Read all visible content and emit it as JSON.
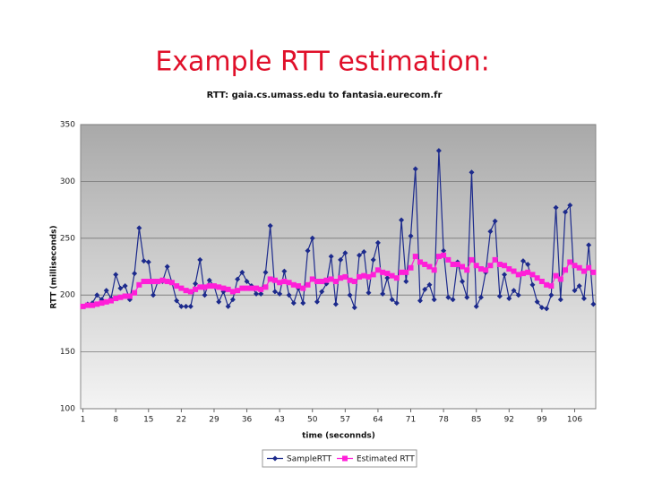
{
  "slide_title": "Example RTT estimation:",
  "chart_data": {
    "type": "line",
    "title": "RTT: gaia.cs.umass.edu to fantasia.eurecom.fr",
    "x_label": "time (seconnds)",
    "y_label": "RTT (milliseconds)",
    "x": [
      1,
      2,
      3,
      4,
      5,
      6,
      7,
      8,
      9,
      10,
      11,
      12,
      13,
      14,
      15,
      16,
      17,
      18,
      19,
      20,
      21,
      22,
      23,
      24,
      25,
      26,
      27,
      28,
      29,
      30,
      31,
      32,
      33,
      34,
      35,
      36,
      37,
      38,
      39,
      40,
      41,
      42,
      43,
      44,
      45,
      46,
      47,
      48,
      49,
      50,
      51,
      52,
      53,
      54,
      55,
      56,
      57,
      58,
      59,
      60,
      61,
      62,
      63,
      64,
      65,
      66,
      67,
      68,
      69,
      70,
      71,
      72,
      73,
      74,
      75,
      76,
      77,
      78,
      79,
      80,
      81,
      82,
      83,
      84,
      85,
      86,
      87,
      88,
      89,
      90,
      91,
      92,
      93,
      94,
      95,
      96,
      97,
      98,
      99,
      100,
      101,
      102,
      103,
      104,
      105,
      106,
      107,
      108,
      109,
      110
    ],
    "xlim": [
      0.5,
      110.5
    ],
    "xticks": [
      1,
      8,
      15,
      22,
      29,
      36,
      43,
      50,
      57,
      64,
      71,
      78,
      85,
      92,
      99,
      106
    ],
    "ylim": [
      100,
      350
    ],
    "yticks": [
      100,
      150,
      200,
      250,
      300,
      350
    ],
    "grid": true,
    "legend": "bottom",
    "series": [
      {
        "name": "SampleRTT",
        "color": "#1c2a8c",
        "marker": "diamond",
        "values": [
          190,
          192,
          193,
          200,
          196,
          204,
          197,
          218,
          206,
          208,
          196,
          219,
          259,
          230,
          229,
          200,
          212,
          212,
          225,
          211,
          195,
          190,
          190,
          190,
          210,
          231,
          200,
          213,
          208,
          194,
          203,
          190,
          196,
          214,
          220,
          212,
          208,
          201,
          201,
          220,
          261,
          203,
          201,
          221,
          200,
          193,
          206,
          193,
          239,
          250,
          194,
          203,
          210,
          234,
          192,
          231,
          237,
          200,
          189,
          235,
          238,
          202,
          231,
          246,
          201,
          215,
          196,
          193,
          266,
          212,
          252,
          311,
          195,
          205,
          209,
          196,
          327,
          239,
          198,
          196,
          229,
          212,
          198,
          308,
          190,
          198,
          220,
          256,
          265,
          199,
          218,
          197,
          204,
          200,
          230,
          227,
          209,
          194,
          189,
          188,
          200,
          277,
          196,
          273,
          279,
          204,
          208,
          197,
          244,
          192
        ]
      },
      {
        "name": "Estimated RTT",
        "color": "#ff1fd8",
        "marker": "square",
        "values": [
          190,
          191,
          191,
          192,
          193,
          194,
          195,
          197,
          198,
          199,
          199,
          202,
          209,
          212,
          212,
          212,
          212,
          213,
          212,
          211,
          208,
          206,
          204,
          203,
          205,
          207,
          207,
          208,
          208,
          207,
          206,
          205,
          203,
          204,
          206,
          206,
          206,
          206,
          205,
          207,
          214,
          213,
          211,
          212,
          211,
          209,
          208,
          206,
          209,
          214,
          212,
          212,
          213,
          214,
          212,
          215,
          216,
          213,
          212,
          216,
          217,
          216,
          218,
          222,
          220,
          219,
          217,
          215,
          220,
          220,
          224,
          234,
          229,
          227,
          225,
          222,
          234,
          235,
          231,
          227,
          227,
          225,
          222,
          231,
          226,
          223,
          222,
          226,
          231,
          227,
          226,
          223,
          221,
          218,
          219,
          220,
          218,
          215,
          212,
          209,
          208,
          217,
          214,
          222,
          229,
          226,
          224,
          221,
          224,
          220
        ]
      }
    ]
  }
}
